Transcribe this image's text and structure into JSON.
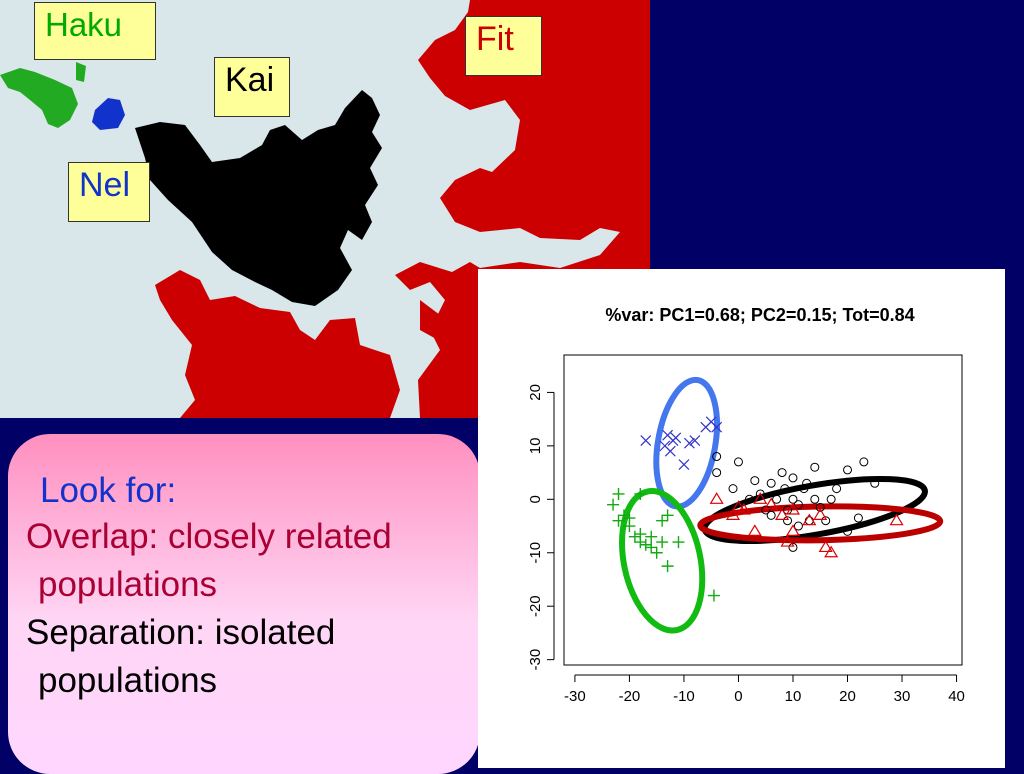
{
  "map": {
    "labels": [
      {
        "text": "Haku",
        "color": "#00aa00"
      },
      {
        "text": "Fit",
        "color": "#cc0000"
      },
      {
        "text": "Kai",
        "color": "#000000"
      },
      {
        "text": "Nel",
        "color": "#1133cc"
      }
    ],
    "colors": {
      "sea": "#d9e6ea",
      "fit_land": "#cc0000",
      "kai_land": "#000000",
      "haku_land": "#22aa22",
      "nel_land": "#1133cc"
    }
  },
  "info": {
    "heading": "Look for:",
    "overlap_line1": "Overlap: closely related",
    "overlap_line2": "populations",
    "separation_line1": "Separation: isolated",
    "separation_line2": "populations"
  },
  "chart_data": {
    "type": "scatter",
    "title": "%var: PC1=0.68; PC2=0.15; Tot=0.84",
    "xlabel": "",
    "ylabel": "",
    "xlim": [
      -32,
      41
    ],
    "ylim": [
      -31,
      27
    ],
    "xticks": [
      -30,
      -20,
      -10,
      0,
      10,
      20,
      30,
      40
    ],
    "yticks": [
      -30,
      -20,
      -10,
      0,
      10,
      20
    ],
    "x_tick_labels": [
      "-30",
      "-20",
      "-10",
      "0",
      "10",
      "20",
      "30",
      "40"
    ],
    "y_tick_labels": [
      "-30",
      "-20",
      "-10",
      "0",
      "10",
      "20"
    ],
    "grid": false,
    "series": [
      {
        "marker": "x",
        "color": "#3333cc",
        "points": [
          [
            -17,
            11
          ],
          [
            -13,
            12
          ],
          [
            -12.5,
            9
          ],
          [
            -13.5,
            10
          ],
          [
            -11.5,
            11.5
          ],
          [
            -10,
            6.5
          ],
          [
            -8,
            11
          ],
          [
            -6,
            13.5
          ],
          [
            -5,
            14.5
          ],
          [
            -4,
            13.5
          ],
          [
            -12,
            11
          ],
          [
            -9,
            10.5
          ]
        ]
      },
      {
        "marker": "circle",
        "color": "#000000",
        "points": [
          [
            -4,
            8
          ],
          [
            -4,
            5
          ],
          [
            -1,
            2
          ],
          [
            0,
            7
          ],
          [
            2,
            0
          ],
          [
            3,
            3.5
          ],
          [
            4,
            1
          ],
          [
            5,
            -2
          ],
          [
            6,
            3
          ],
          [
            7,
            0
          ],
          [
            8,
            5
          ],
          [
            8.5,
            2
          ],
          [
            9,
            -2
          ],
          [
            10,
            0
          ],
          [
            10,
            4
          ],
          [
            11,
            -1
          ],
          [
            12,
            2
          ],
          [
            12.5,
            3
          ],
          [
            14,
            6
          ],
          [
            15,
            -1.5
          ],
          [
            16,
            -4
          ],
          [
            17,
            0
          ],
          [
            18,
            2
          ],
          [
            20,
            -6
          ],
          [
            20,
            5.5
          ],
          [
            22,
            -3.5
          ],
          [
            23,
            7
          ],
          [
            25,
            3
          ],
          [
            10,
            -9
          ],
          [
            13,
            -4
          ],
          [
            9,
            -4
          ],
          [
            11,
            -5
          ],
          [
            6,
            -3
          ],
          [
            14,
            0
          ]
        ]
      },
      {
        "marker": "triangle",
        "color": "#dd0000",
        "points": [
          [
            -4,
            0
          ],
          [
            -1,
            -3
          ],
          [
            0,
            -1.5
          ],
          [
            1,
            -2
          ],
          [
            3,
            -6
          ],
          [
            4,
            0
          ],
          [
            6,
            -1
          ],
          [
            8,
            -3
          ],
          [
            9,
            -8
          ],
          [
            10,
            -6
          ],
          [
            10,
            -2
          ],
          [
            13,
            -4
          ],
          [
            15,
            -3
          ],
          [
            16,
            -9
          ],
          [
            17,
            -10
          ],
          [
            29,
            -4
          ]
        ]
      },
      {
        "marker": "plus",
        "color": "#11aa11",
        "points": [
          [
            -22,
            1
          ],
          [
            -23,
            -1
          ],
          [
            -21,
            -3
          ],
          [
            -22,
            -4
          ],
          [
            -20,
            -3.5
          ],
          [
            -20,
            -5
          ],
          [
            -19,
            -7
          ],
          [
            -18,
            -6.5
          ],
          [
            -18,
            -8
          ],
          [
            -17,
            -8.5
          ],
          [
            -16,
            -7
          ],
          [
            -16,
            -9
          ],
          [
            -15,
            -10
          ],
          [
            -14,
            -8
          ],
          [
            -14,
            -4
          ],
          [
            -13,
            -3
          ],
          [
            -13,
            -12.5
          ],
          [
            -11,
            -8
          ],
          [
            -4.5,
            -18
          ],
          [
            -18,
            1
          ]
        ]
      }
    ],
    "ellipses": [
      {
        "color": "#4477ee",
        "cx": -9.5,
        "cy": 10.5,
        "rx": 10.5,
        "ry": 24,
        "angle": 10
      },
      {
        "color": "#000000",
        "cx": 14,
        "cy": -2,
        "rx": 41,
        "ry": 9.2,
        "angle": -10
      },
      {
        "color": "#bb0000",
        "cx": 15,
        "cy": -4.5,
        "rx": 44,
        "ry": 6.3,
        "angle": -1
      },
      {
        "color": "#11bb11",
        "cx": -14,
        "cy": -11.5,
        "rx": 14,
        "ry": 26.5,
        "angle": -12
      }
    ]
  }
}
